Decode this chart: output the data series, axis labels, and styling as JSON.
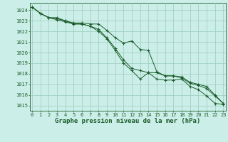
{
  "background_color": "#cceee8",
  "plot_bg_color": "#cceee8",
  "grid_color": "#99ccbb",
  "line_color": "#1a5c2a",
  "xlabel": "Graphe pression niveau de la mer (hPa)",
  "xlabel_fontsize": 6.5,
  "yticks": [
    1015,
    1016,
    1017,
    1018,
    1019,
    1020,
    1021,
    1022,
    1023,
    1024
  ],
  "xticks": [
    0,
    1,
    2,
    3,
    4,
    5,
    6,
    7,
    8,
    9,
    10,
    11,
    12,
    13,
    14,
    15,
    16,
    17,
    18,
    19,
    20,
    21,
    22,
    23
  ],
  "ylim": [
    1014.5,
    1024.7
  ],
  "xlim": [
    -0.3,
    23.3
  ],
  "line1": [
    1024.3,
    1023.7,
    1023.3,
    1023.3,
    1023.0,
    1022.8,
    1022.8,
    1022.7,
    1022.7,
    1022.1,
    1021.4,
    1020.9,
    1021.1,
    1020.3,
    1020.2,
    1018.2,
    1017.8,
    1017.8,
    1017.7,
    1017.2,
    1017.0,
    1016.8,
    1016.0,
    1015.2
  ],
  "line2": [
    1024.3,
    1023.7,
    1023.3,
    1023.2,
    1023.0,
    1022.7,
    1022.7,
    1022.5,
    1022.2,
    1021.4,
    1020.4,
    1019.3,
    1018.5,
    1018.3,
    1018.1,
    1018.1,
    1017.8,
    1017.8,
    1017.6,
    1017.1,
    1016.9,
    1016.6,
    1015.9,
    1015.2
  ],
  "line3": [
    1024.3,
    1023.7,
    1023.3,
    1023.1,
    1022.9,
    1022.7,
    1022.7,
    1022.5,
    1022.0,
    1021.3,
    1020.2,
    1019.0,
    1018.3,
    1017.5,
    1018.1,
    1017.5,
    1017.4,
    1017.4,
    1017.5,
    1016.8,
    1016.5,
    1015.9,
    1015.2,
    1015.1
  ]
}
